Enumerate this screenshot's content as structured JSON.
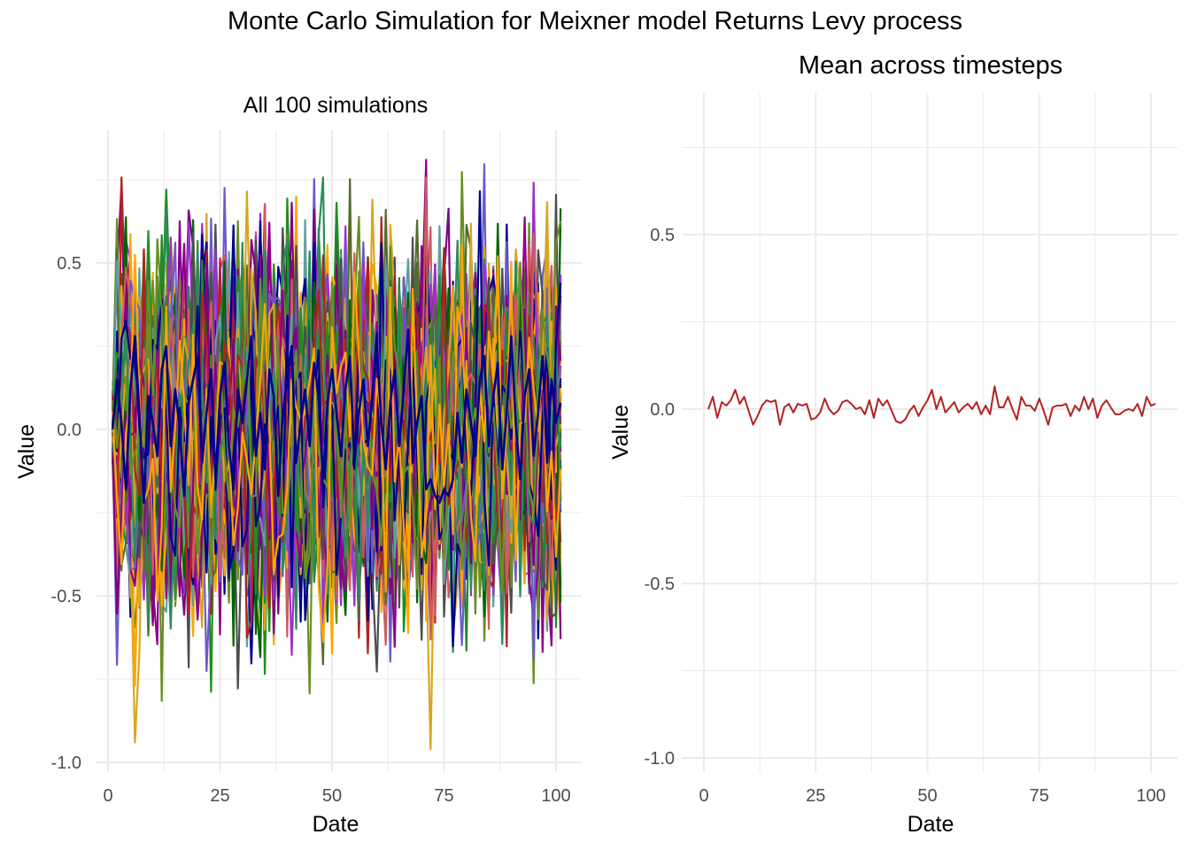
{
  "title": "Monte Carlo Simulation for Meixner model Returns Levy process",
  "colors": {
    "grid": "#ebebeb",
    "tick_text": "#4d4d4d",
    "mean_line": "#b22222",
    "palette": [
      "#b22222",
      "#00008b",
      "#6b8e23",
      "#ffa500",
      "#9932cc",
      "#5f9ea0",
      "#556b2f",
      "#006400",
      "#8b008b",
      "#4d4d4d",
      "#6a5acd",
      "#228b22",
      "#cd5c5c",
      "#daa520",
      "#800080",
      "#2e8b57"
    ]
  },
  "chart_data": [
    {
      "type": "line",
      "title": "All 100 simulations",
      "xlabel": "Date",
      "ylabel": "Value",
      "xlim": [
        0,
        101
      ],
      "ylim": [
        -1.0,
        0.8
      ],
      "x_ticks": [
        0,
        25,
        50,
        75,
        100
      ],
      "x_tick_labels": [
        "0",
        "25",
        "50",
        "75",
        "100"
      ],
      "y_ticks": [
        -1.0,
        -0.5,
        0.0,
        0.5
      ],
      "y_tick_labels": [
        "-1.0",
        "-0.5",
        "0.0",
        "0.5"
      ],
      "grid": true,
      "legend": "none",
      "n_series": 100,
      "n_steps": 101,
      "value_range": [
        -0.96,
        0.81
      ],
      "highlight_series": [
        {
          "color": "#00008b",
          "values": [
            0.0,
            0.15,
            0.02,
            -0.18,
            0.12,
            0.28,
            0.05,
            -0.22,
            0.1,
            0.02,
            -0.08,
            0.18,
            0.25,
            -0.05,
            0.12,
            0.0,
            -0.2,
            0.08,
            0.15,
            0.22,
            -0.1,
            0.05,
            0.18,
            -0.15,
            0.1,
            0.2,
            -0.05,
            -0.18,
            0.12,
            0.02,
            0.15,
            0.28,
            -0.08,
            0.05,
            -0.12,
            0.18,
            0.1,
            -0.2,
            0.05,
            0.15,
            0.25,
            -0.1,
            0.02,
            0.12,
            -0.05,
            0.2,
            0.1,
            -0.15,
            0.08,
            0.18,
            0.05,
            -0.08,
            0.12,
            0.22,
            -0.1,
            0.05,
            0.15,
            -0.05,
            0.1,
            0.25,
            0.02,
            -0.12,
            0.08,
            0.18,
            -0.05,
            0.12,
            0.3,
            -0.1,
            0.02,
            0.1,
            -0.18,
            -0.15,
            -0.2,
            -0.22,
            -0.18,
            -0.2,
            -0.15,
            0.05,
            -0.1,
            0.12,
            0.02,
            -0.08,
            0.15,
            0.22,
            -0.05,
            0.1,
            0.2,
            -0.12,
            0.05,
            0.28,
            0.02,
            -0.15,
            0.1,
            0.18,
            -0.08,
            0.05,
            0.22,
            -0.1,
            0.15,
            0.02,
            0.08
          ]
        }
      ]
    },
    {
      "type": "line",
      "title": "Mean across timesteps",
      "xlabel": "Date",
      "ylabel": "Value",
      "xlim": [
        0,
        101
      ],
      "ylim": [
        -1.0,
        0.8
      ],
      "x_ticks": [
        0,
        25,
        50,
        75,
        100
      ],
      "x_tick_labels": [
        "0",
        "25",
        "50",
        "75",
        "100"
      ],
      "y_ticks": [
        -1.0,
        -0.5,
        0.0,
        0.5
      ],
      "y_tick_labels": [
        "-1.0",
        "-0.5",
        "0.0",
        "0.5"
      ],
      "grid": true,
      "legend": "none",
      "series": [
        {
          "color": "#b22222",
          "x_start": 1,
          "values": [
            0.0,
            0.035,
            -0.025,
            0.02,
            0.01,
            0.025,
            0.055,
            0.015,
            0.035,
            -0.005,
            -0.045,
            -0.02,
            0.01,
            0.025,
            0.02,
            0.025,
            -0.045,
            0.005,
            0.015,
            -0.01,
            0.015,
            0.01,
            0.015,
            -0.03,
            -0.025,
            -0.01,
            0.03,
            0.0,
            -0.015,
            -0.005,
            0.02,
            0.025,
            0.015,
            0.0,
            0.005,
            -0.015,
            0.025,
            -0.025,
            0.03,
            0.01,
            0.025,
            -0.005,
            -0.035,
            -0.04,
            -0.03,
            -0.005,
            0.01,
            -0.02,
            0.005,
            0.025,
            0.055,
            0.0,
            0.035,
            -0.01,
            0.005,
            0.02,
            -0.01,
            0.005,
            0.015,
            0.0,
            0.02,
            -0.015,
            0.01,
            -0.015,
            0.065,
            0.005,
            0.005,
            0.035,
            0.0,
            -0.03,
            0.035,
            0.01,
            0.01,
            -0.005,
            0.03,
            -0.005,
            -0.045,
            0.005,
            0.01,
            0.01,
            0.015,
            -0.02,
            0.01,
            -0.005,
            0.035,
            0.0,
            0.03,
            -0.025,
            0.01,
            0.025,
            0.005,
            -0.015,
            -0.015,
            -0.005,
            0.0,
            -0.005,
            0.015,
            -0.02,
            0.035,
            0.01,
            0.015
          ]
        }
      ]
    }
  ]
}
